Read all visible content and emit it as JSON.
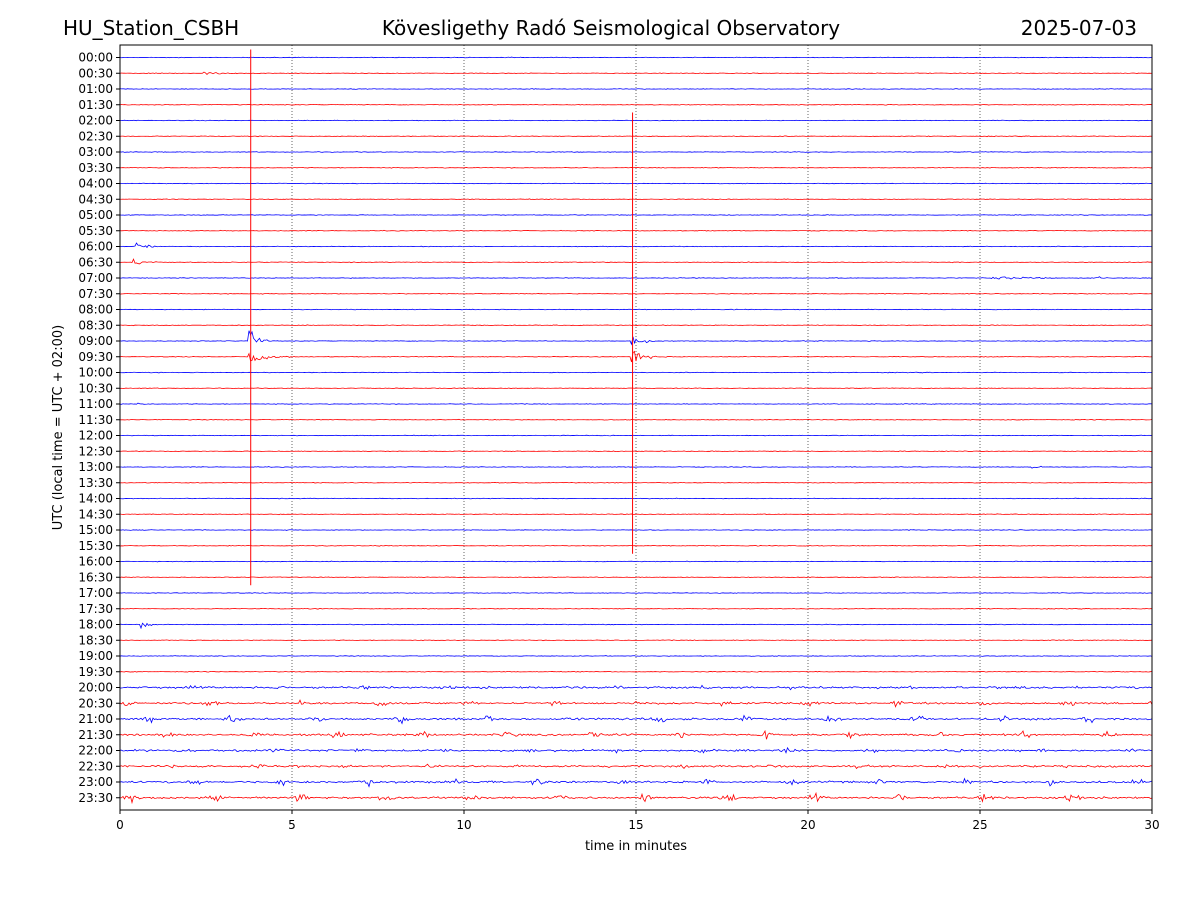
{
  "header": {
    "station": "HU_Station_CSBH",
    "observatory": "Kövesligethy Radó Seismological Observatory",
    "date": "2025-07-03"
  },
  "chart_data": {
    "type": "line",
    "title": "Kövesligethy Radó Seismological Observatory",
    "xlabel": "time in minutes",
    "ylabel": "UTC (local time = UTC + 02:00)",
    "xlim": [
      0,
      30
    ],
    "xticks": [
      0,
      5,
      10,
      15,
      20,
      25,
      30
    ],
    "grid": "vertical dotted lines at every 5 minutes",
    "series_colors": [
      "#0000ff",
      "#ff0000"
    ],
    "rows": [
      "00:00",
      "00:30",
      "01:00",
      "01:30",
      "02:00",
      "02:30",
      "03:00",
      "03:30",
      "04:00",
      "04:30",
      "05:00",
      "05:30",
      "06:00",
      "06:30",
      "07:00",
      "07:30",
      "08:00",
      "08:30",
      "09:00",
      "09:30",
      "10:00",
      "10:30",
      "11:00",
      "11:30",
      "12:00",
      "12:30",
      "13:00",
      "13:30",
      "14:00",
      "14:30",
      "15:00",
      "15:30",
      "16:00",
      "16:30",
      "17:00",
      "17:30",
      "18:00",
      "18:30",
      "19:00",
      "19:30",
      "20:00",
      "20:30",
      "21:00",
      "21:30",
      "22:00",
      "22:30",
      "23:00",
      "23:30"
    ],
    "events": [
      {
        "row": "00:30",
        "start_min": 2.4,
        "end_min": 4.8,
        "amplitude": 0.15
      },
      {
        "row": "06:00",
        "start_min": 0.35,
        "end_min": 1.2,
        "amplitude": 0.9
      },
      {
        "row": "06:30",
        "start_min": 0.35,
        "end_min": 1.4,
        "amplitude": 0.35
      },
      {
        "row": "07:00",
        "start_min": 25.3,
        "end_min": 27.5,
        "amplitude": 0.3
      },
      {
        "row": "07:00",
        "start_min": 28.4,
        "end_min": 29.0,
        "amplitude": 0.2
      },
      {
        "row": "09:00",
        "start_min": 3.75,
        "end_min": 4.5,
        "amplitude": 1.0
      },
      {
        "row": "09:30",
        "start_min": 3.75,
        "end_min": 5.0,
        "amplitude": 1.0
      },
      {
        "row": "09:00",
        "start_min": 14.85,
        "end_min": 15.6,
        "amplitude": 1.0
      },
      {
        "row": "09:30",
        "start_min": 14.85,
        "end_min": 16.0,
        "amplitude": 1.0
      },
      {
        "row": "11:00",
        "start_min": 0.4,
        "end_min": 0.9,
        "amplitude": 0.3
      },
      {
        "row": "13:00",
        "start_min": 26.5,
        "end_min": 27.1,
        "amplitude": 0.25
      },
      {
        "row": "18:00",
        "start_min": 0.6,
        "end_min": 1.4,
        "amplitude": 0.4
      }
    ],
    "spikes": [
      {
        "time_min": 3.8,
        "from_row": "00:00",
        "to_row": "16:30",
        "color": "#ff0000"
      },
      {
        "time_min": 14.9,
        "from_row": "02:00",
        "to_row": "15:30",
        "color": "#ff0000"
      }
    ],
    "noisy_rows": [
      "20:00",
      "20:30",
      "21:00",
      "21:30",
      "22:00",
      "22:30",
      "23:00",
      "23:30"
    ]
  }
}
